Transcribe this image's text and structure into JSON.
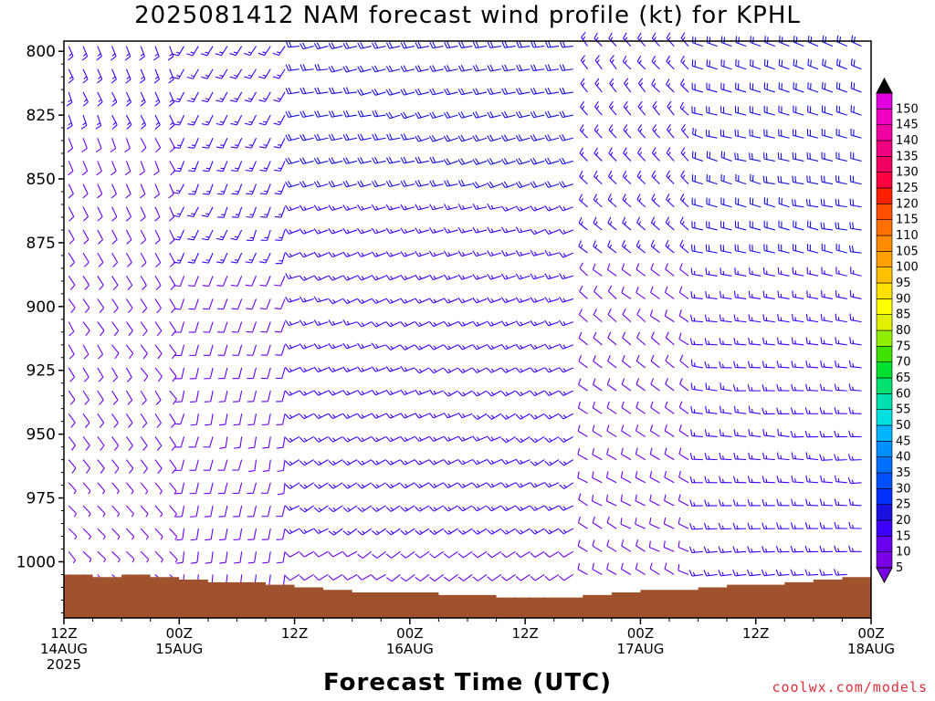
{
  "chart_data": {
    "type": "wind-barb time-height profile",
    "title": "2025081412 NAM forecast wind profile (kt) for KPHL",
    "xlabel": "Forecast Time (UTC)",
    "ylabel": "",
    "credit": "coolwx.com/models",
    "y_axis": {
      "quantity": "pressure (hPa)",
      "inverted": true,
      "range": [
        1022,
        796
      ],
      "ticks": [
        800,
        825,
        850,
        875,
        900,
        925,
        950,
        975,
        1000
      ]
    },
    "x_axis": {
      "range_hours": [
        0,
        84
      ],
      "ticks": [
        {
          "hour": 0,
          "lines": [
            "12Z",
            "14AUG",
            "2025"
          ]
        },
        {
          "hour": 12,
          "lines": [
            "00Z",
            "15AUG"
          ]
        },
        {
          "hour": 24,
          "lines": [
            "12Z"
          ]
        },
        {
          "hour": 36,
          "lines": [
            "00Z",
            "16AUG"
          ]
        },
        {
          "hour": 48,
          "lines": [
            "12Z"
          ]
        },
        {
          "hour": 60,
          "lines": [
            "00Z",
            "17AUG"
          ]
        },
        {
          "hour": 72,
          "lines": [
            "12Z"
          ]
        },
        {
          "hour": 84,
          "lines": [
            "00Z",
            "18AUG"
          ]
        }
      ]
    },
    "colorbar": {
      "units": "kt",
      "levels": [
        5,
        10,
        15,
        20,
        25,
        30,
        35,
        40,
        45,
        50,
        55,
        60,
        65,
        70,
        75,
        80,
        85,
        90,
        95,
        100,
        105,
        110,
        115,
        120,
        125,
        130,
        135,
        140,
        145,
        150
      ],
      "colors": [
        "#7a00e6",
        "#6a00f0",
        "#3d00ff",
        "#1a10e0",
        "#0030ff",
        "#0050ff",
        "#0070ff",
        "#0090ff",
        "#00b4ff",
        "#00e0e0",
        "#00e0b0",
        "#00e070",
        "#00e030",
        "#40e000",
        "#90ef00",
        "#e0f000",
        "#ffff00",
        "#ffe000",
        "#ffc000",
        "#ffa000",
        "#ff8c00",
        "#ff7000",
        "#ff5000",
        "#ff2000",
        "#ff0040",
        "#f00060",
        "#f00080",
        "#f000a0",
        "#f000c0",
        "#e000e0"
      ]
    },
    "surface_pressure": {
      "hours": [
        0,
        3,
        6,
        9,
        12,
        15,
        18,
        21,
        24,
        27,
        30,
        33,
        36,
        39,
        42,
        45,
        48,
        51,
        54,
        57,
        60,
        63,
        66,
        69,
        72,
        75,
        78,
        81,
        84
      ],
      "hPa": [
        1005,
        1006,
        1005,
        1006,
        1007,
        1008,
        1008,
        1009,
        1010,
        1011,
        1012,
        1012,
        1012,
        1013,
        1013,
        1014,
        1014,
        1014,
        1013,
        1012,
        1011,
        1011,
        1010,
        1009,
        1009,
        1008,
        1007,
        1006,
        1004
      ]
    },
    "wind_regimes": [
      {
        "hours": [
          0,
          12
        ],
        "direction_deg": 160,
        "speed_kt": 8
      },
      {
        "hours": [
          12,
          24
        ],
        "direction_deg": 210,
        "speed_kt": 10
      },
      {
        "hours": [
          24,
          54
        ],
        "direction_deg": 260,
        "speed_kt": 14
      },
      {
        "hours": [
          54,
          66
        ],
        "direction_deg": 320,
        "speed_kt": 10
      },
      {
        "hours": [
          66,
          84
        ],
        "direction_deg": 290,
        "speed_kt": 15
      }
    ]
  }
}
